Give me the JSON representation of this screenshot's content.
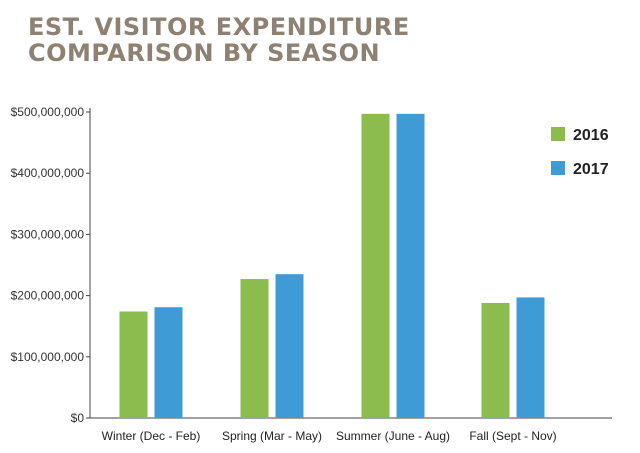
{
  "chart_data": {
    "type": "bar",
    "title_lines": [
      "EST. VISITOR EXPENDITURE",
      "COMPARISON BY SEASON"
    ],
    "xlabel": "",
    "ylabel": "",
    "categories": [
      "Winter (Dec - Feb)",
      "Spring (Mar - May)",
      "Summer (June - Aug)",
      "Fall (Sept - Nov)"
    ],
    "series": [
      {
        "name": "2016",
        "color": "#8cbb4e",
        "values": [
          174000000,
          227000000,
          497000000,
          188000000
        ]
      },
      {
        "name": "2017",
        "color": "#3f9bd6",
        "values": [
          181000000,
          235000000,
          497000000,
          197000000
        ]
      }
    ],
    "ylim": [
      0,
      500000000
    ],
    "yticks": [
      0,
      100000000,
      200000000,
      300000000,
      400000000,
      500000000
    ],
    "ytick_labels": [
      "$0",
      "$100,000,000",
      "$200,000,000",
      "$300,000,000",
      "$400,000,000",
      "$500,000,000"
    ],
    "grid": false,
    "legend_position": "right"
  }
}
